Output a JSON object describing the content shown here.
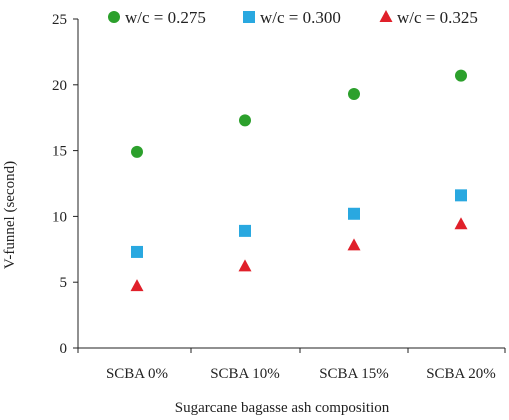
{
  "chart_data": {
    "type": "scatter",
    "title": "",
    "xlabel": "Sugarcane bagasse ash composition",
    "ylabel": "V-funnel (second)",
    "categories": [
      "SCBA 0%",
      "SCBA 10%",
      "SCBA 15%",
      "SCBA 20%"
    ],
    "ylim": [
      0,
      25
    ],
    "yticks": [
      "0",
      "5",
      "10",
      "15",
      "20",
      "25"
    ],
    "grid": false,
    "legend_position": "top",
    "series": [
      {
        "name": "w/c = 0.275",
        "marker": "circle",
        "color": "#2ca02c",
        "values": [
          14.9,
          17.3,
          19.3,
          20.7
        ]
      },
      {
        "name": "w/c = 0.300",
        "marker": "square",
        "color": "#29a8e0",
        "values": [
          7.3,
          8.9,
          10.2,
          11.6
        ]
      },
      {
        "name": "w/c = 0.325",
        "marker": "triangle",
        "color": "#e0202a",
        "values": [
          4.7,
          6.2,
          7.8,
          9.4
        ]
      }
    ]
  }
}
